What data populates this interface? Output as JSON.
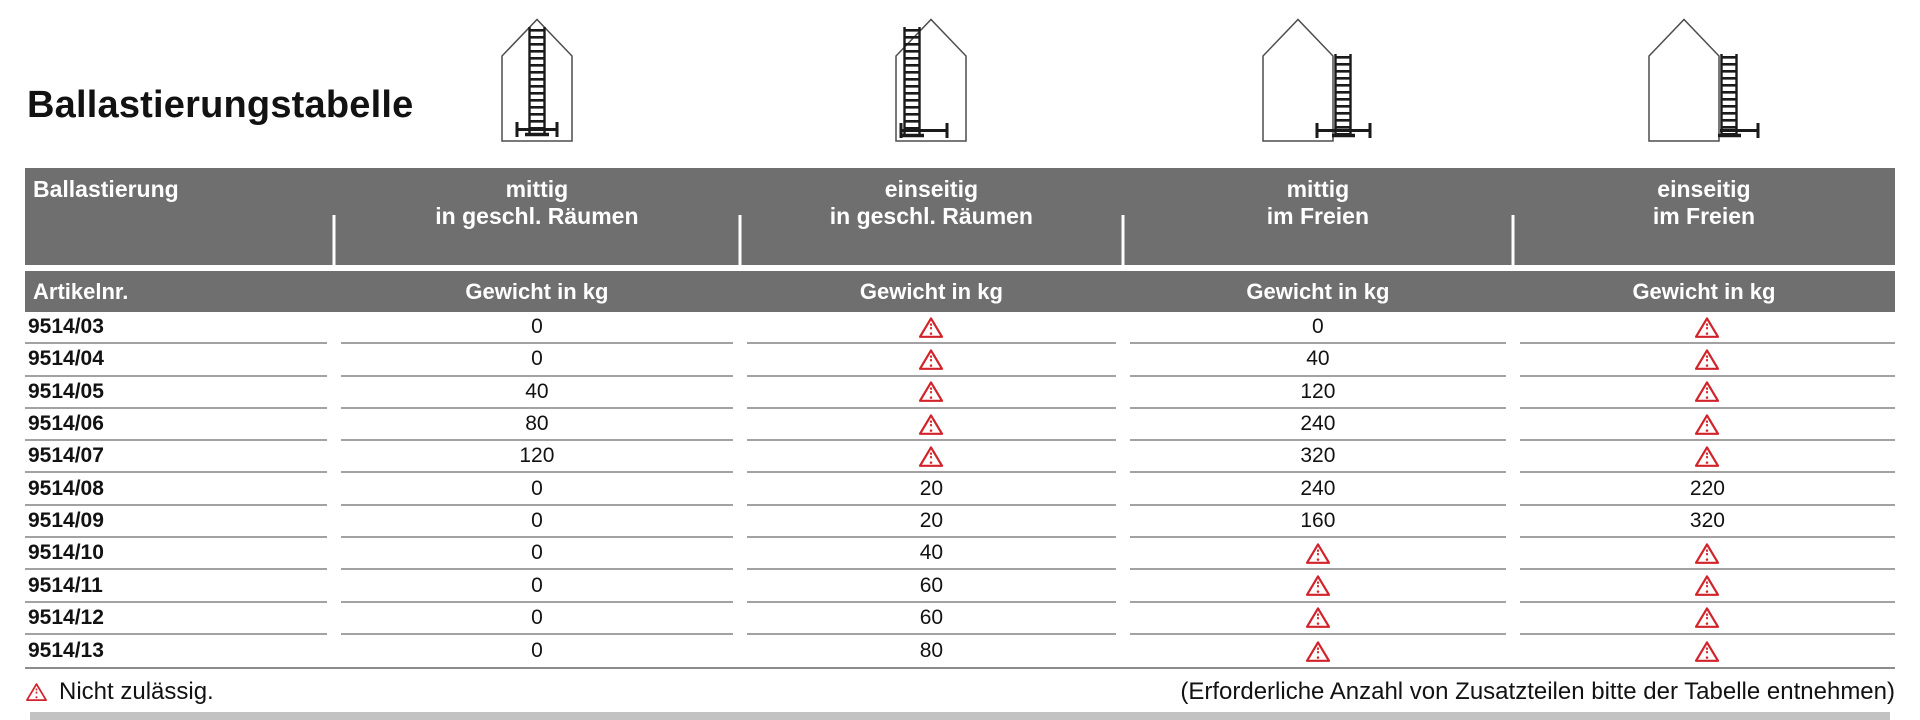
{
  "title": "Ballastierungstabelle",
  "table": {
    "group_header": {
      "label": "Ballastierung",
      "columns": [
        {
          "line1": "mittig",
          "line2": "in geschl. Räumen",
          "icon": "house-ladder-center-indoor-icon"
        },
        {
          "line1": "einseitig",
          "line2": "in geschl. Räumen",
          "icon": "house-ladder-side-indoor-icon"
        },
        {
          "line1": "mittig",
          "line2": "im Freien",
          "icon": "house-ladder-center-outdoor-icon"
        },
        {
          "line1": "einseitig",
          "line2": "im Freien",
          "icon": "house-ladder-side-outdoor-icon"
        }
      ]
    },
    "sub_header": {
      "article_label": "Artikelnr.",
      "weight_label": "Gewicht in kg"
    },
    "rows": [
      {
        "article": "9514/03",
        "values": [
          "0",
          null,
          "0",
          null
        ]
      },
      {
        "article": "9514/04",
        "values": [
          "0",
          null,
          "40",
          null
        ]
      },
      {
        "article": "9514/05",
        "values": [
          "40",
          null,
          "120",
          null
        ]
      },
      {
        "article": "9514/06",
        "values": [
          "80",
          null,
          "240",
          null
        ]
      },
      {
        "article": "9514/07",
        "values": [
          "120",
          null,
          "320",
          null
        ]
      },
      {
        "article": "9514/08",
        "values": [
          "0",
          "20",
          "240",
          "220"
        ]
      },
      {
        "article": "9514/09",
        "values": [
          "0",
          "20",
          "160",
          "320"
        ]
      },
      {
        "article": "9514/10",
        "values": [
          "0",
          "40",
          null,
          null
        ]
      },
      {
        "article": "9514/11",
        "values": [
          "0",
          "60",
          null,
          null
        ]
      },
      {
        "article": "9514/12",
        "values": [
          "0",
          "60",
          null,
          null
        ]
      },
      {
        "article": "9514/13",
        "values": [
          "0",
          "80",
          null,
          null
        ]
      }
    ],
    "not_allowed_icon": "warning-triangle-icon"
  },
  "footer": {
    "left_label": "Nicht zulässig.",
    "right_note": "(Erforderliche Anzahl von Zusatzteilen bitte der Tabelle entnehmen)"
  },
  "colors": {
    "header_bg": "#6f6f6f",
    "warning_red": "#d2232b",
    "row_line": "#a2a2a2",
    "bottom_strip": "#c2c2c2",
    "text": "#121212"
  }
}
